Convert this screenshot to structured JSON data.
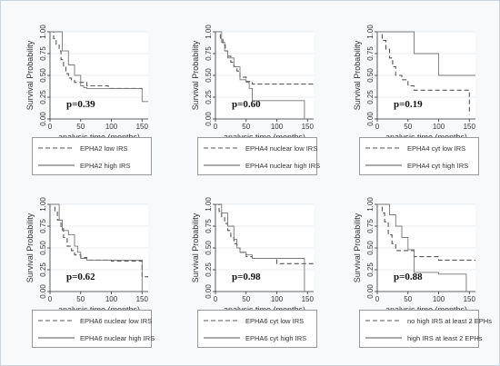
{
  "chart_data": [
    {
      "type": "line",
      "ylabel": "Survival Probability",
      "xlabel": "analysis time (months)",
      "xlim": [
        0,
        160
      ],
      "ylim": [
        0,
        1
      ],
      "xticks": [
        "0",
        "50",
        "100",
        "150"
      ],
      "yticks": [
        "0.00",
        "0.25",
        "0.50",
        "0.75",
        "1.00"
      ],
      "annotation": "p=0.39",
      "series": [
        {
          "name": "EPHA2 low IRS",
          "style": "dashed",
          "x": [
            0,
            6,
            10,
            15,
            18,
            22,
            26,
            30,
            35,
            40,
            60,
            95,
            150
          ],
          "y": [
            1.0,
            0.92,
            0.85,
            0.78,
            0.68,
            0.6,
            0.52,
            0.47,
            0.45,
            0.42,
            0.38,
            0.35,
            0.32
          ]
        },
        {
          "name": "EPHA2 high IRS",
          "style": "solid",
          "x": [
            0,
            20,
            30,
            40,
            50,
            55,
            60,
            150,
            160
          ],
          "y": [
            1.0,
            0.78,
            0.62,
            0.5,
            0.38,
            0.36,
            0.35,
            0.2,
            0.2
          ]
        }
      ]
    },
    {
      "type": "line",
      "ylabel": "Survival Probability",
      "xlabel": "analysis time (months)",
      "xlim": [
        0,
        160
      ],
      "ylim": [
        0,
        1
      ],
      "xticks": [
        "0",
        "50",
        "100",
        "150"
      ],
      "yticks": [
        "0.00",
        "0.25",
        "0.50",
        "0.75",
        "1.00"
      ],
      "annotation": "p=0.60",
      "series": [
        {
          "name": "EPHA4 nuclear low IRS",
          "style": "dashed",
          "x": [
            0,
            8,
            12,
            16,
            20,
            25,
            30,
            35,
            40,
            50,
            60,
            100,
            160
          ],
          "y": [
            1.0,
            0.92,
            0.85,
            0.78,
            0.72,
            0.65,
            0.6,
            0.55,
            0.48,
            0.43,
            0.4,
            0.4,
            0.4
          ]
        },
        {
          "name": "EPHA4 nuclear high IRS",
          "style": "solid",
          "x": [
            0,
            10,
            15,
            20,
            30,
            40,
            50,
            55,
            60,
            145
          ],
          "y": [
            1.0,
            0.88,
            0.78,
            0.7,
            0.6,
            0.45,
            0.42,
            0.35,
            0.21,
            0.0
          ]
        }
      ]
    },
    {
      "type": "line",
      "ylabel": "Survival Probability",
      "xlabel": "analysis time (months)",
      "xlim": [
        0,
        160
      ],
      "ylim": [
        0,
        1
      ],
      "xticks": [
        "0",
        "50",
        "100",
        "150"
      ],
      "yticks": [
        "0.00",
        "0.25",
        "0.50",
        "0.75",
        "1.00"
      ],
      "annotation": "p=0.19",
      "series": [
        {
          "name": "EPHA4 cyt low IRS",
          "style": "dashed",
          "x": [
            0,
            8,
            14,
            20,
            25,
            30,
            40,
            50,
            60,
            100,
            150
          ],
          "y": [
            1.0,
            0.9,
            0.8,
            0.7,
            0.6,
            0.5,
            0.45,
            0.38,
            0.33,
            0.33,
            0.05
          ]
        },
        {
          "name": "EPHA4 cyt high IRS",
          "style": "solid",
          "x": [
            0,
            30,
            60,
            100,
            160
          ],
          "y": [
            1.0,
            1.0,
            0.75,
            0.5,
            0.5
          ]
        }
      ]
    },
    {
      "type": "line",
      "ylabel": "Survival Probability",
      "xlabel": "analysis time (months)",
      "xlim": [
        0,
        160
      ],
      "ylim": [
        0,
        1
      ],
      "xticks": [
        "0",
        "50",
        "100",
        "150"
      ],
      "yticks": [
        "0.00",
        "0.25",
        "0.50",
        "0.75",
        "1.00"
      ],
      "annotation": "p=0.62",
      "series": [
        {
          "name": "EPHA6 nuclear low IRS",
          "style": "dashed",
          "x": [
            0,
            8,
            12,
            18,
            22,
            28,
            35,
            40,
            50,
            60,
            100,
            150,
            160
          ],
          "y": [
            1.0,
            0.92,
            0.82,
            0.72,
            0.62,
            0.52,
            0.47,
            0.42,
            0.39,
            0.36,
            0.35,
            0.17,
            0.17
          ]
        },
        {
          "name": "EPHA6 nuclear high IRS",
          "style": "solid",
          "x": [
            0,
            15,
            20,
            30,
            40,
            45,
            50,
            60,
            150
          ],
          "y": [
            1.0,
            0.82,
            0.7,
            0.65,
            0.52,
            0.45,
            0.38,
            0.36,
            0.0
          ]
        }
      ]
    },
    {
      "type": "line",
      "ylabel": "Survival Probability",
      "xlabel": "analysis time (months)",
      "xlim": [
        0,
        160
      ],
      "ylim": [
        0,
        1
      ],
      "xticks": [
        "0",
        "50",
        "100",
        "150"
      ],
      "yticks": [
        "0.00",
        "0.25",
        "0.50",
        "0.75",
        "1.00"
      ],
      "annotation": "p=0.98",
      "series": [
        {
          "name": "EPHA6 cyt low IRS",
          "style": "dashed",
          "x": [
            0,
            6,
            10,
            15,
            20,
            25,
            30,
            35,
            40,
            50,
            60,
            100,
            160
          ],
          "y": [
            1.0,
            0.92,
            0.85,
            0.78,
            0.7,
            0.62,
            0.55,
            0.5,
            0.45,
            0.4,
            0.38,
            0.32,
            0.32
          ]
        },
        {
          "name": "EPHA6 cyt high IRS",
          "style": "solid",
          "x": [
            0,
            10,
            20,
            30,
            35,
            40,
            50,
            60,
            145
          ],
          "y": [
            1.0,
            0.9,
            0.75,
            0.6,
            0.5,
            0.45,
            0.42,
            0.38,
            0.0
          ]
        }
      ]
    },
    {
      "type": "line",
      "ylabel": "Survival Probability",
      "xlabel": "analysis time (months)",
      "xlim": [
        0,
        160
      ],
      "ylim": [
        0,
        1
      ],
      "xticks": [
        "0",
        "50",
        "100",
        "150"
      ],
      "yticks": [
        "0.00",
        "0.25",
        "0.50",
        "0.75",
        "1.00"
      ],
      "annotation": "p=0.88",
      "series": [
        {
          "name": "no high IRS at least 2 EPHs",
          "style": "dashed",
          "x": [
            0,
            8,
            12,
            18,
            24,
            30,
            60,
            100,
            160
          ],
          "y": [
            1.0,
            0.9,
            0.8,
            0.65,
            0.55,
            0.47,
            0.4,
            0.36,
            0.36
          ]
        },
        {
          "name": "high IRS at least 2 EPHs",
          "style": "solid",
          "x": [
            0,
            20,
            30,
            40,
            50,
            60,
            100,
            145
          ],
          "y": [
            1.0,
            0.88,
            0.75,
            0.62,
            0.48,
            0.22,
            0.2,
            0.0
          ]
        }
      ]
    }
  ]
}
